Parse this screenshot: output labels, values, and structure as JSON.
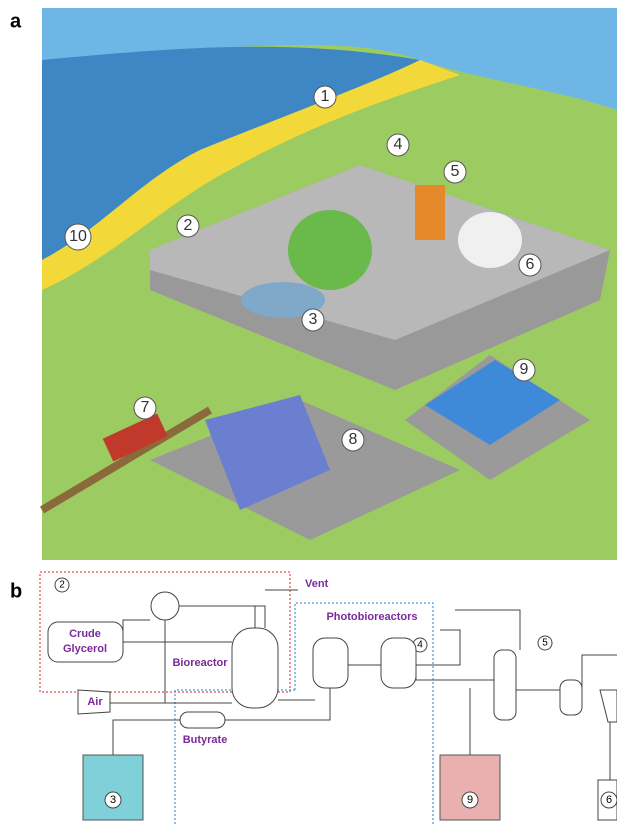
{
  "panel_a": {
    "label": "a",
    "markers": [
      "1",
      "2",
      "3",
      "4",
      "5",
      "6",
      "7",
      "8",
      "9",
      "10"
    ]
  },
  "panel_b": {
    "label": "b",
    "unit_2": "2",
    "vent": "Vent",
    "crude_glycerol": [
      "Crude",
      "Glycerol"
    ],
    "bioreactor": "Bioreactor",
    "air": "Air",
    "unit_4": "4",
    "photobioreactors": "Photobioreactors",
    "unit_5": "5",
    "butyrate": "Butyrate",
    "unit_3": "3",
    "unit_9": "9",
    "unit_6": "6"
  }
}
